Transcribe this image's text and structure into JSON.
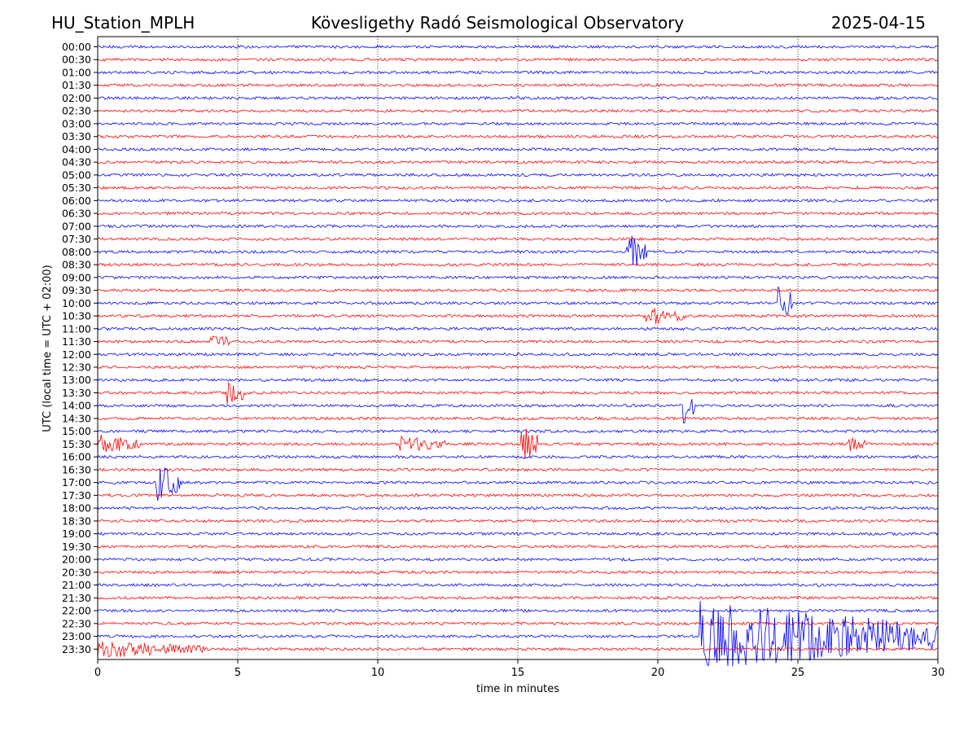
{
  "header": {
    "station": "HU_Station_MPLH",
    "observatory": "Kövesligethy Radó Seismological Observatory",
    "date": "2025-04-15"
  },
  "colors": {
    "even_trace": "#0000ff",
    "odd_trace": "#ff0000",
    "axes": "#000000",
    "background": "#ffffff"
  },
  "chart_data": {
    "type": "line",
    "subtype": "helicorder",
    "xlabel": "time in minutes",
    "ylabel": "UTC (local time = UTC + 02:00)",
    "xlim": [
      0,
      30
    ],
    "xticks": [
      0,
      5,
      10,
      15,
      20,
      25,
      30
    ],
    "xtick_labels": [
      "0",
      "5",
      "10",
      "15",
      "20",
      "25",
      "30"
    ],
    "vertical_grid": "dotted at 5-minute ticks",
    "rows": [
      "00:00",
      "00:30",
      "01:00",
      "01:30",
      "02:00",
      "02:30",
      "03:00",
      "03:30",
      "04:00",
      "04:30",
      "05:00",
      "05:30",
      "06:00",
      "06:30",
      "07:00",
      "07:30",
      "08:00",
      "08:30",
      "09:00",
      "09:30",
      "10:00",
      "10:30",
      "11:00",
      "11:30",
      "12:00",
      "12:30",
      "13:00",
      "13:30",
      "14:00",
      "14:30",
      "15:00",
      "15:30",
      "16:00",
      "16:30",
      "17:00",
      "17:30",
      "18:00",
      "18:30",
      "19:00",
      "19:30",
      "20:00",
      "20:30",
      "21:00",
      "21:30",
      "22:00",
      "22:30",
      "23:00",
      "23:30"
    ],
    "events": [
      {
        "row": "08:00",
        "start": 18.9,
        "end": 19.6,
        "amp": 3.5
      },
      {
        "row": "10:00",
        "start": 24.3,
        "end": 24.8,
        "amp": 4.5
      },
      {
        "row": "10:30",
        "start": 19.5,
        "end": 21.0,
        "amp": 1.5
      },
      {
        "row": "11:30",
        "start": 4.0,
        "end": 4.8,
        "amp": 1.3
      },
      {
        "row": "13:30",
        "start": 4.6,
        "end": 5.3,
        "amp": 2.2
      },
      {
        "row": "14:00",
        "start": 20.9,
        "end": 21.3,
        "amp": 3.5
      },
      {
        "row": "15:30",
        "start": 0.0,
        "end": 1.5,
        "amp": 1.5
      },
      {
        "row": "15:30",
        "start": 10.8,
        "end": 12.5,
        "amp": 1.2
      },
      {
        "row": "15:30",
        "start": 15.1,
        "end": 15.7,
        "amp": 4.0
      },
      {
        "row": "15:30",
        "start": 26.8,
        "end": 27.4,
        "amp": 1.2
      },
      {
        "row": "17:00",
        "start": 2.1,
        "end": 3.0,
        "amp": 3.5
      },
      {
        "row": "23:00",
        "start": 21.5,
        "end": 30.0,
        "amp": 6.0
      },
      {
        "row": "23:30",
        "start": 0.0,
        "end": 3.8,
        "amp": 1.3
      }
    ]
  }
}
